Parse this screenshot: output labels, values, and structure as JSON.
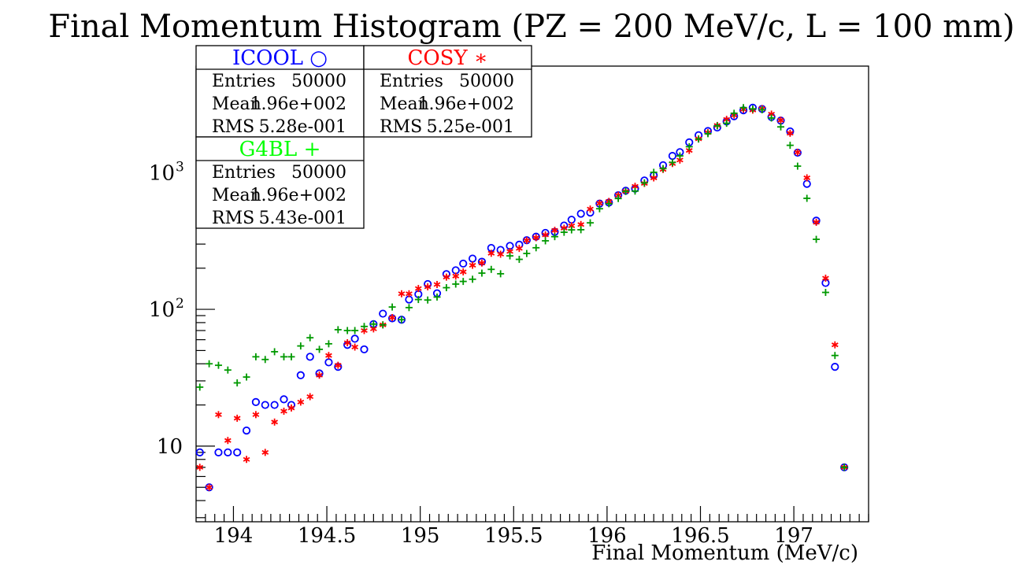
{
  "chart_data": {
    "type": "scatter",
    "title": "Final Momentum Histogram (PZ = 200 MeV/c, L = 100 mm)",
    "xlabel": "Final Momentum (MeV/c)",
    "ylabel": "",
    "xlim": [
      193.8,
      197.4
    ],
    "ylim": [
      2.8,
      6000
    ],
    "yscale": "log",
    "grid": false,
    "x_ticks": [
      {
        "value": 194,
        "label": "194"
      },
      {
        "value": 194.5,
        "label": "194.5"
      },
      {
        "value": 195,
        "label": "195"
      },
      {
        "value": 195.5,
        "label": "195.5"
      },
      {
        "value": 196,
        "label": "196"
      },
      {
        "value": 196.5,
        "label": "196.5"
      },
      {
        "value": 197,
        "label": "197"
      }
    ],
    "y_ticks": [
      {
        "value": 10,
        "label": "10",
        "sup": ""
      },
      {
        "value": 100,
        "label": "10",
        "sup": "2"
      },
      {
        "value": 1000,
        "label": "10",
        "sup": "3"
      }
    ],
    "x": [
      193.82,
      193.87,
      193.92,
      193.97,
      194.02,
      194.07,
      194.12,
      194.17,
      194.22,
      194.27,
      194.31,
      194.36,
      194.41,
      194.46,
      194.51,
      194.56,
      194.61,
      194.65,
      194.7,
      194.75,
      194.8,
      194.85,
      194.9,
      194.94,
      194.99,
      195.04,
      195.09,
      195.14,
      195.19,
      195.23,
      195.28,
      195.33,
      195.38,
      195.43,
      195.48,
      195.53,
      195.57,
      195.62,
      195.67,
      195.72,
      195.77,
      195.81,
      195.86,
      195.91,
      195.96,
      196.01,
      196.06,
      196.1,
      196.15,
      196.2,
      196.25,
      196.3,
      196.35,
      196.39,
      196.44,
      196.49,
      196.54,
      196.59,
      196.64,
      196.68,
      196.73,
      196.78,
      196.83,
      196.88,
      196.93,
      196.98,
      197.02,
      197.07,
      197.12,
      197.17,
      197.22,
      197.27
    ],
    "series": [
      {
        "name": "ICOOL ○",
        "color": "#0000ff",
        "marker": "circle",
        "values": [
          9,
          5,
          9,
          9,
          9,
          13,
          21,
          20,
          20,
          22,
          20,
          33,
          45,
          34,
          41,
          38,
          55,
          61,
          51,
          78,
          93,
          86,
          84,
          118,
          129,
          153,
          131,
          181,
          193,
          216,
          235,
          223,
          281,
          272,
          291,
          297,
          320,
          340,
          362,
          368,
          410,
          452,
          500,
          510,
          593,
          603,
          683,
          737,
          763,
          875,
          954,
          1131,
          1323,
          1410,
          1663,
          1874,
          2011,
          2134,
          2362,
          2578,
          2850,
          2978,
          2918,
          2548,
          2397,
          2000,
          1398,
          827,
          445,
          156,
          38,
          7
        ]
      },
      {
        "name": "COSY ∗",
        "color": "#ff0000",
        "marker": "asterisk",
        "values": [
          7,
          5,
          17,
          11,
          16,
          8,
          17,
          9,
          15,
          18,
          19,
          21,
          23,
          33,
          46,
          39,
          57,
          53,
          70,
          72,
          77,
          87,
          130,
          130,
          142,
          146,
          152,
          172,
          175,
          188,
          210,
          218,
          257,
          253,
          265,
          279,
          319,
          334,
          350,
          378,
          392,
          408,
          417,
          541,
          596,
          615,
          682,
          729,
          793,
          833,
          914,
          1054,
          1164,
          1234,
          1450,
          1764,
          1962,
          2210,
          2446,
          2629,
          2896,
          2862,
          2927,
          2675,
          2411,
          1938,
          1407,
          915,
          433,
          169,
          55,
          7
        ]
      },
      {
        "name": "G4BL +",
        "color": "#009900",
        "marker": "plus",
        "values": [
          27,
          40,
          39,
          36,
          29,
          32,
          45,
          43,
          49,
          45,
          45,
          54,
          62,
          51,
          56,
          71,
          70,
          70,
          75,
          78,
          77,
          104,
          84,
          103,
          118,
          117,
          123,
          144,
          153,
          160,
          166,
          184,
          196,
          182,
          246,
          232,
          256,
          282,
          317,
          340,
          366,
          381,
          382,
          429,
          544,
          592,
          646,
          728,
          732,
          841,
          1004,
          1069,
          1185,
          1324,
          1545,
          1757,
          1924,
          2194,
          2292,
          2712,
          2984,
          2922,
          2877,
          2504,
          2157,
          1582,
          1114,
          648,
          325,
          133,
          46,
          7
        ]
      }
    ],
    "legend": {
      "placement": "top-left",
      "boxes": [
        {
          "title": "ICOOL ○",
          "color": "#0000ff",
          "entries": "50000",
          "mean": "1.96e+002",
          "rms": "5.28e-001"
        },
        {
          "title": "COSY ∗",
          "color": "#ff0000",
          "entries": "50000",
          "mean": "1.96e+002",
          "rms": "5.25e-001"
        },
        {
          "title": "G4BL +",
          "color": "#00ff00",
          "entries": "50000",
          "mean": "1.96e+002",
          "rms": "5.43e-001"
        }
      ],
      "labels": {
        "entries": "Entries",
        "mean": "Mean",
        "rms": "RMS"
      }
    }
  }
}
